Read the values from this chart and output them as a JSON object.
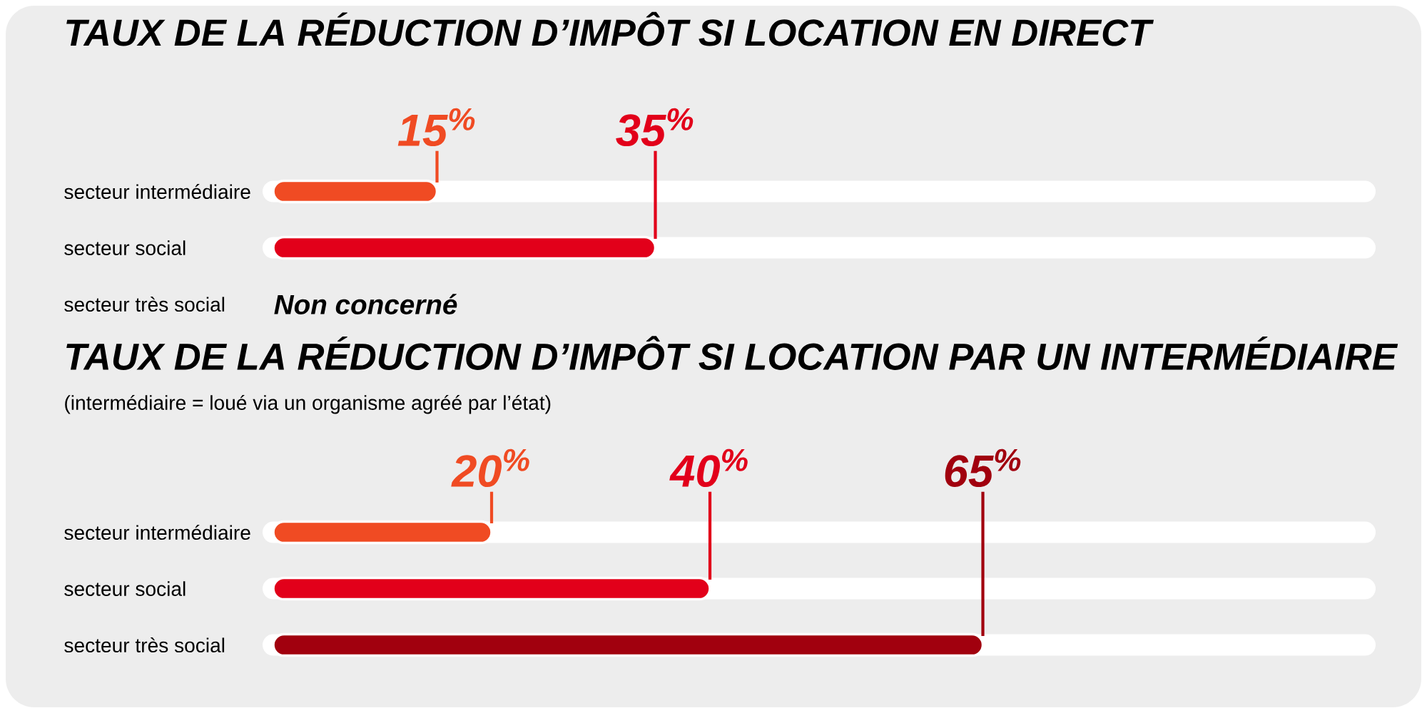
{
  "chart_data": [
    {
      "type": "bar",
      "orientation": "horizontal",
      "title": "TAUX DE LA RÉDUCTION D’IMPÔT SI LOCATION EN DIRECT",
      "categories": [
        "secteur intermédiaire",
        "secteur social",
        "secteur très social"
      ],
      "values": [
        15,
        35,
        null
      ],
      "value_labels": [
        "15$^{%}$",
        "35$^{%}$",
        "Non concerné"
      ],
      "colors": [
        "#f04b23",
        "#e2001a",
        "#000000"
      ],
      "xlim": [
        0,
        100
      ],
      "tick_labels": "y"
    },
    {
      "type": "bar",
      "orientation": "horizontal",
      "title": "TAUX DE LA RÉDUCTION D’IMPÔT SI LOCATION PAR UN INTERMÉDIAIRE",
      "subtitle": "(intermédiaire = loué via un organisme agréé par l’état)",
      "categories": [
        "secteur intermédiaire",
        "secteur social",
        "secteur très social"
      ],
      "values": [
        20,
        40,
        65
      ],
      "value_labels": [
        "20$^{%}$",
        "40$^{%}$",
        "65$^{%}$"
      ],
      "colors": [
        "#f04b23",
        "#e2001a",
        "#a1000e"
      ],
      "xlim": [
        0,
        100
      ],
      "tick_labels": "y"
    }
  ]
}
